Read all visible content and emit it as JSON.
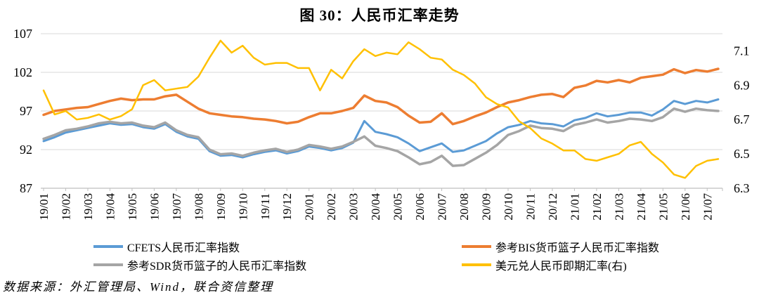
{
  "title": "图 30：人民币汇率走势",
  "source_note": "数据来源：外汇管理局、Wind，联合资信整理",
  "chart_data": {
    "type": "line",
    "title": "图 30：人民币汇率走势",
    "samples_per_month": 2,
    "grid_on": true,
    "grid_color": "#D9D9D9",
    "axis_color": "#BFBFBF",
    "legend_position": "bottom",
    "x_tick_labels": [
      "19/01",
      "19/02",
      "19/03",
      "19/04",
      "19/05",
      "19/06",
      "19/07",
      "19/08",
      "19/09",
      "19/10",
      "19/11",
      "19/12",
      "20/01",
      "20/02",
      "20/03",
      "20/04",
      "20/05",
      "20/06",
      "20/07",
      "20/08",
      "20/09",
      "20/10",
      "20/11",
      "20/12",
      "21/01",
      "21/02",
      "21/03",
      "21/04",
      "21/05",
      "21/06",
      "21/07"
    ],
    "left_axis": {
      "min": 87,
      "max": 107,
      "ticks": [
        87,
        92,
        97,
        102,
        107
      ]
    },
    "right_axis": {
      "min": 6.3,
      "max": 7.2,
      "ticks": [
        6.3,
        6.5,
        6.7,
        6.9,
        7.1
      ]
    },
    "series": [
      {
        "key": "cfets",
        "name": "CFETS人民币汇率指数",
        "axis": "left",
        "color": "#5B9BD5",
        "width": 3,
        "values": [
          93.1,
          93.6,
          94.2,
          94.5,
          94.8,
          95.1,
          95.4,
          95.2,
          95.3,
          94.9,
          94.7,
          95.3,
          94.3,
          93.7,
          93.4,
          91.8,
          91.2,
          91.3,
          91.0,
          91.4,
          91.7,
          91.9,
          91.5,
          91.8,
          92.4,
          92.2,
          91.9,
          92.2,
          92.9,
          95.7,
          94.3,
          94.0,
          93.6,
          92.8,
          91.8,
          92.3,
          92.8,
          91.7,
          91.9,
          92.5,
          93.1,
          94.1,
          94.9,
          95.2,
          95.7,
          95.4,
          95.3,
          95.0,
          95.8,
          96.1,
          96.7,
          96.3,
          96.5,
          96.8,
          96.8,
          96.4,
          97.2,
          98.3,
          97.9,
          98.3,
          98.1,
          98.5
        ]
      },
      {
        "key": "bis",
        "name": "参考BIS货币篮子人民币汇率指数",
        "axis": "left",
        "color": "#ED7D31",
        "width": 3.5,
        "values": [
          96.5,
          97.0,
          97.2,
          97.4,
          97.5,
          97.9,
          98.3,
          98.6,
          98.4,
          98.5,
          98.5,
          98.9,
          99.1,
          98.2,
          97.3,
          96.7,
          96.5,
          96.3,
          96.2,
          96.0,
          95.9,
          95.7,
          95.4,
          95.6,
          96.2,
          96.7,
          96.7,
          97.0,
          97.4,
          99.0,
          98.3,
          98.1,
          97.5,
          96.4,
          95.5,
          95.6,
          96.7,
          95.3,
          95.7,
          96.3,
          96.8,
          97.5,
          98.1,
          98.4,
          98.8,
          99.1,
          99.2,
          98.8,
          100.0,
          100.3,
          100.9,
          100.7,
          101.0,
          100.7,
          101.3,
          101.5,
          101.7,
          102.4,
          101.9,
          102.3,
          102.1,
          102.45
        ]
      },
      {
        "key": "sdr",
        "name": "参考SDR货币篮子的人民币汇率指数",
        "axis": "left",
        "color": "#A5A5A5",
        "width": 3.5,
        "values": [
          93.4,
          93.9,
          94.5,
          94.7,
          95.0,
          95.4,
          95.6,
          95.4,
          95.5,
          95.1,
          94.9,
          95.5,
          94.5,
          93.9,
          93.6,
          92.0,
          91.4,
          91.5,
          91.2,
          91.6,
          91.9,
          92.1,
          91.7,
          92.0,
          92.6,
          92.4,
          92.1,
          92.4,
          93.0,
          93.7,
          92.5,
          92.2,
          91.8,
          91.0,
          90.1,
          90.4,
          91.2,
          89.9,
          90.0,
          90.8,
          91.6,
          92.6,
          93.9,
          94.4,
          95.1,
          94.8,
          94.7,
          94.4,
          95.2,
          95.5,
          95.9,
          95.5,
          95.7,
          96.0,
          95.9,
          95.7,
          96.2,
          97.3,
          96.9,
          97.3,
          97.1,
          97.0
        ]
      },
      {
        "key": "usdcny",
        "name": "美元兑人民币即期汇率(右)",
        "axis": "right",
        "color": "#FFC000",
        "width": 2.5,
        "values": [
          6.87,
          6.73,
          6.75,
          6.7,
          6.71,
          6.73,
          6.7,
          6.72,
          6.76,
          6.9,
          6.93,
          6.87,
          6.88,
          6.89,
          6.95,
          7.06,
          7.16,
          7.09,
          7.13,
          7.06,
          7.02,
          7.03,
          7.03,
          7.0,
          7.0,
          6.87,
          6.99,
          6.94,
          7.04,
          7.11,
          7.07,
          7.09,
          7.08,
          7.15,
          7.11,
          7.06,
          7.05,
          6.99,
          6.96,
          6.91,
          6.83,
          6.79,
          6.77,
          6.69,
          6.65,
          6.59,
          6.56,
          6.52,
          6.52,
          6.47,
          6.46,
          6.48,
          6.5,
          6.55,
          6.57,
          6.5,
          6.45,
          6.38,
          6.36,
          6.43,
          6.46,
          6.47
        ]
      }
    ]
  }
}
